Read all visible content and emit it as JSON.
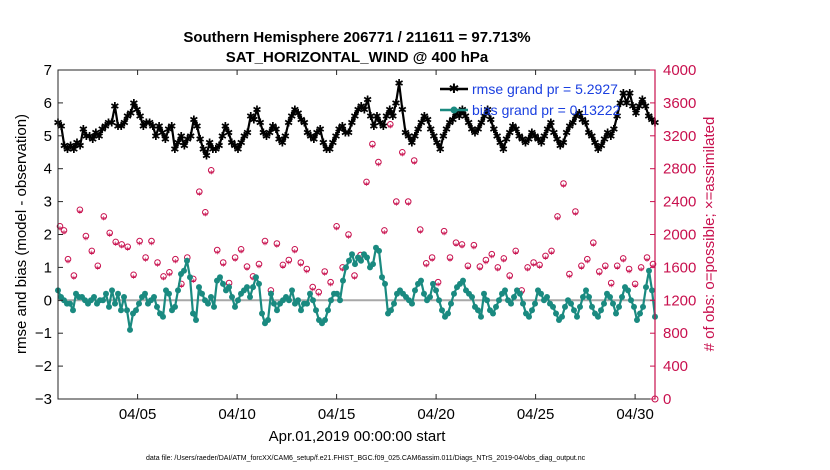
{
  "chart_data": {
    "type": "line",
    "title_line1": "Southern Hemisphere 206771 / 211611 = 97.713%",
    "title_line2": "SAT_HORIZONTAL_WIND @ 400 hPa",
    "xlabel": "Apr.01,2019 00:00:00 start",
    "ylabel_left": "rmse and bias (model - observation)",
    "ylabel_right": "# of obs: o=possible; ×=assimilated",
    "footer": "data file: /Users/raeder/DAI/ATM_forcXX/CAM6_setup/f.e21.FHIST_BGC.f09_025.CAM6assim.011/Diags_NTrS_2019-04/obs_diag_output.nc",
    "xlim": [
      1,
      31
    ],
    "ylim_left": [
      -3,
      7
    ],
    "ylim_right": [
      0,
      4000
    ],
    "x_ticks": [
      5,
      10,
      15,
      20,
      25,
      30
    ],
    "x_tick_labels": [
      "04/05",
      "04/10",
      "04/15",
      "04/20",
      "04/25",
      "04/30"
    ],
    "y_ticks_left": [
      -3,
      -2,
      -1,
      0,
      1,
      2,
      3,
      4,
      5,
      6,
      7
    ],
    "y_ticks_right": [
      0,
      400,
      800,
      1200,
      1600,
      2000,
      2400,
      2800,
      3200,
      3600,
      4000
    ],
    "legend": [
      {
        "name": "rmse grand pr = 5.2927",
        "color": "#000000"
      },
      {
        "name": "bias grand pr = 0.13222",
        "color": "#1a8a80"
      }
    ],
    "colors": {
      "rmse": "#000000",
      "bias": "#1a8a80",
      "obs": "#c8104e",
      "zero": "#a8a8a8"
    },
    "series": [
      {
        "name": "rmse",
        "axis": "left",
        "values": [
          5.4,
          5.3,
          4.7,
          4.6,
          4.7,
          4.6,
          4.8,
          4.7,
          5.2,
          5.0,
          5.0,
          4.9,
          5.1,
          5.0,
          5.2,
          5.3,
          5.4,
          5.4,
          5.9,
          5.3,
          5.3,
          5.4,
          5.6,
          5.7,
          6.0,
          5.8,
          5.6,
          5.3,
          5.4,
          5.4,
          5.3,
          5.0,
          5.3,
          5.1,
          4.9,
          5.2,
          5.3,
          4.6,
          4.8,
          5.0,
          4.7,
          4.9,
          5.0,
          5.5,
          5.3,
          4.9,
          4.6,
          4.4,
          4.8,
          4.6,
          4.6,
          4.7,
          5.0,
          5.3,
          5.1,
          4.8,
          4.7,
          4.6,
          4.8,
          5.0,
          5.1,
          5.6,
          5.5,
          5.8,
          5.4,
          5.1,
          5.0,
          5.1,
          5.3,
          5.2,
          4.9,
          4.8,
          5.0,
          5.4,
          5.6,
          5.8,
          5.7,
          5.5,
          5.4,
          5.1,
          5.0,
          4.9,
          5.1,
          5.2,
          4.8,
          4.6,
          4.6,
          4.8,
          5.0,
          5.2,
          5.3,
          5.1,
          5.1,
          5.4,
          5.6,
          5.8,
          5.9,
          5.8,
          6.1,
          5.6,
          5.3,
          5.6,
          5.4,
          5.3,
          5.6,
          5.8,
          5.6,
          6.0,
          6.6,
          5.8,
          5.1,
          5.0,
          4.8,
          5.0,
          5.2,
          5.4,
          5.6,
          5.5,
          5.2,
          5.0,
          4.8,
          4.6,
          5.0,
          5.2,
          5.4,
          5.5,
          5.7,
          5.6,
          5.8,
          5.6,
          5.4,
          5.2,
          5.1,
          5.2,
          5.4,
          5.6,
          5.8,
          5.5,
          5.2,
          5.0,
          4.8,
          4.6,
          4.9,
          5.1,
          5.3,
          5.2,
          5.0,
          4.9,
          4.8,
          4.9,
          5.1,
          5.0,
          4.9,
          4.8,
          5.0,
          5.2,
          5.4,
          5.1,
          4.9,
          4.7,
          4.8,
          5.1,
          5.3,
          5.4,
          5.6,
          5.7,
          5.5,
          5.4,
          5.1,
          5.0,
          4.8,
          4.6,
          4.7,
          4.9,
          5.1,
          5.0,
          5.2,
          5.6,
          6.0,
          6.3,
          6.0,
          6.3,
          5.9,
          5.7,
          5.9,
          6.1,
          5.9,
          5.6,
          5.5,
          5.4
        ]
      },
      {
        "name": "bias",
        "axis": "left",
        "values": [
          0.3,
          0.1,
          0.0,
          -0.1,
          -0.1,
          -0.3,
          0.2,
          0.1,
          0.1,
          0.0,
          -0.1,
          0.0,
          0.1,
          -0.1,
          0.0,
          0.0,
          0.2,
          -0.2,
          0.3,
          -0.1,
          0.2,
          -0.3,
          0.1,
          -0.3,
          -0.9,
          -0.4,
          -0.3,
          -0.1,
          0.1,
          0.2,
          -0.1,
          0.0,
          0.1,
          -0.2,
          -0.4,
          -0.5,
          0.3,
          0.2,
          -0.3,
          -0.2,
          0.3,
          0.8,
          0.9,
          1.2,
          0.7,
          -0.4,
          -0.6,
          0.4,
          0.2,
          0.0,
          -0.1,
          0.1,
          -0.2,
          0.6,
          0.7,
          0.5,
          0.3,
          0.4,
          0.1,
          -0.2,
          0.0,
          0.2,
          0.3,
          0.4,
          0.1,
          0.4,
          0.7,
          0.5,
          -0.4,
          -0.7,
          -0.6,
          0.2,
          -0.1,
          -0.3,
          -0.1,
          0.0,
          0.1,
          0.0,
          0.3,
          -0.1,
          0.0,
          -0.3,
          -0.1,
          -0.1,
          0.2,
          0.0,
          -0.3,
          -0.6,
          -0.7,
          -0.6,
          -0.3,
          0.0,
          0.2,
          0.2,
          0.0,
          0.6,
          1.0,
          1.2,
          1.4,
          1.1,
          1.3,
          1.2,
          1.4,
          1.3,
          1.0,
          1.1,
          1.6,
          1.5,
          0.7,
          0.5,
          -0.4,
          -0.3,
          -0.1,
          0.2,
          0.3,
          0.2,
          0.1,
          0.0,
          -0.1,
          0.3,
          0.5,
          0.6,
          0.2,
          0.0,
          0.1,
          0.5,
          0.3,
          0.0,
          -0.3,
          -0.5,
          -0.4,
          -0.1,
          0.2,
          0.4,
          0.5,
          0.6,
          0.3,
          0.2,
          0.1,
          -0.2,
          -0.3,
          -0.5,
          0.2,
          0.0,
          -0.3,
          -0.4,
          -0.2,
          0.0,
          0.2,
          0.3,
          0.0,
          -0.1,
          0.1,
          0.3,
          0.2,
          -0.1,
          -0.4,
          -0.5,
          -0.3,
          -0.1,
          0.3,
          0.2,
          0.0,
          0.1,
          -0.1,
          -0.2,
          -0.4,
          -0.6,
          -0.5,
          -0.2,
          0.0,
          -0.1,
          -0.3,
          -0.5,
          -0.2,
          0.1,
          0.3,
          0.1,
          -0.2,
          -0.4,
          -0.5,
          -0.3,
          -0.1,
          0.2,
          0.1,
          -0.1,
          -0.4,
          -0.2,
          0.1,
          0.4,
          0.3,
          0.0,
          -0.2,
          -0.6,
          -0.4,
          -0.2,
          0.4,
          0.9,
          0.3,
          -0.5
        ]
      },
      {
        "name": "possible",
        "axis": "right",
        "x": [
          1.1,
          1.3,
          1.5,
          1.8,
          2.1,
          2.4,
          2.7,
          3.0,
          3.3,
          3.6,
          3.9,
          4.2,
          4.5,
          4.8,
          5.1,
          5.4,
          5.7,
          6.0,
          6.3,
          6.6,
          6.9,
          7.2,
          7.5,
          7.8,
          8.1,
          8.4,
          8.7,
          9.0,
          9.3,
          9.6,
          9.9,
          10.2,
          10.5,
          10.8,
          11.1,
          11.4,
          11.7,
          12.0,
          12.3,
          12.6,
          12.9,
          13.2,
          13.5,
          13.8,
          14.1,
          14.4,
          14.7,
          15.0,
          15.3,
          15.6,
          15.9,
          16.2,
          16.5,
          16.8,
          17.1,
          17.4,
          17.7,
          18.0,
          18.3,
          18.6,
          18.9,
          19.2,
          19.5,
          19.8,
          20.1,
          20.4,
          20.7,
          21.0,
          21.3,
          21.6,
          21.9,
          22.2,
          22.5,
          22.8,
          23.1,
          23.4,
          23.7,
          24.0,
          24.3,
          24.6,
          24.9,
          25.2,
          25.5,
          25.8,
          26.1,
          26.4,
          26.7,
          27.0,
          27.3,
          27.6,
          27.9,
          28.2,
          28.5,
          28.8,
          29.1,
          29.4,
          29.7,
          30.0,
          30.3,
          30.6,
          30.9
        ],
        "values": [
          2100,
          2050,
          1700,
          1500,
          2300,
          1980,
          1800,
          1620,
          2220,
          2020,
          1910,
          1880,
          1850,
          1510,
          1920,
          1720,
          1920,
          1660,
          1490,
          1540,
          1700,
          1400,
          1720,
          1460,
          2520,
          2270,
          2780,
          1810,
          1660,
          1410,
          1720,
          1820,
          1610,
          1490,
          1640,
          1920,
          1320,
          1890,
          1630,
          1690,
          1820,
          1660,
          1580,
          1360,
          1300,
          1550,
          1420,
          2100,
          1600,
          2000,
          1500,
          1750,
          2640,
          3100,
          2880,
          2050,
          3340,
          2400,
          3000,
          2400,
          2900,
          2060,
          1650,
          1720,
          1420,
          2040,
          1720,
          1900,
          1880,
          1620,
          1870,
          1610,
          1690,
          1760,
          1600,
          1710,
          1500,
          1800,
          1320,
          1600,
          1660,
          1630,
          1740,
          1800,
          2220,
          2620,
          1520,
          2280,
          1620,
          1700,
          1900,
          1550,
          1620,
          1410,
          1620,
          1710,
          1580,
          1400,
          1600,
          1720,
          1640
        ]
      },
      {
        "name": "assimilated",
        "axis": "right",
        "x": [
          1.1,
          1.3,
          1.5,
          1.8,
          2.1,
          2.4,
          2.7,
          3.0,
          3.3,
          3.6,
          3.9,
          4.2,
          4.5,
          4.8,
          5.1,
          5.4,
          5.7,
          6.0,
          6.3,
          6.6,
          6.9,
          7.2,
          7.5,
          7.8,
          8.1,
          8.4,
          8.7,
          9.0,
          9.3,
          9.6,
          9.9,
          10.2,
          10.5,
          10.8,
          11.1,
          11.4,
          11.7,
          12.0,
          12.3,
          12.6,
          12.9,
          13.2,
          13.5,
          13.8,
          14.1,
          14.4,
          14.7,
          15.0,
          15.3,
          15.6,
          15.9,
          16.2,
          16.5,
          16.8,
          17.1,
          17.4,
          17.7,
          18.0,
          18.3,
          18.6,
          18.9,
          19.2,
          19.5,
          19.8,
          20.1,
          20.4,
          20.7,
          21.0,
          21.3,
          21.6,
          21.9,
          22.2,
          22.5,
          22.8,
          23.1,
          23.4,
          23.7,
          24.0,
          24.3,
          24.6,
          24.9,
          25.2,
          25.5,
          25.8,
          26.1,
          26.4,
          26.7,
          27.0,
          27.3,
          27.6,
          27.9,
          28.2,
          28.5,
          28.8,
          29.1,
          29.4,
          29.7,
          30.0,
          30.3,
          30.6,
          30.9
        ],
        "values": [
          2060,
          2010,
          1660,
          1460,
          2260,
          1940,
          1760,
          1580,
          2180,
          1980,
          1870,
          1840,
          1810,
          1470,
          1880,
          1680,
          1880,
          1620,
          1450,
          1500,
          1660,
          1360,
          1680,
          1420,
          2480,
          2230,
          2740,
          1770,
          1620,
          1370,
          1680,
          1780,
          1570,
          1450,
          1600,
          1880,
          1280,
          1850,
          1590,
          1650,
          1780,
          1620,
          1540,
          1320,
          1260,
          1510,
          1380,
          2060,
          1560,
          1960,
          1460,
          1710,
          2600,
          3060,
          2840,
          2010,
          3300,
          2360,
          2960,
          2360,
          2860,
          2020,
          1610,
          1680,
          1380,
          2000,
          1680,
          1860,
          1840,
          1580,
          1830,
          1570,
          1650,
          1720,
          1560,
          1670,
          1460,
          1760,
          1280,
          1560,
          1620,
          1590,
          1700,
          1760,
          2180,
          2580,
          1480,
          2240,
          1580,
          1660,
          1860,
          1510,
          1580,
          1370,
          1580,
          1670,
          1540,
          1360,
          1560,
          1680,
          1600
        ]
      }
    ]
  }
}
